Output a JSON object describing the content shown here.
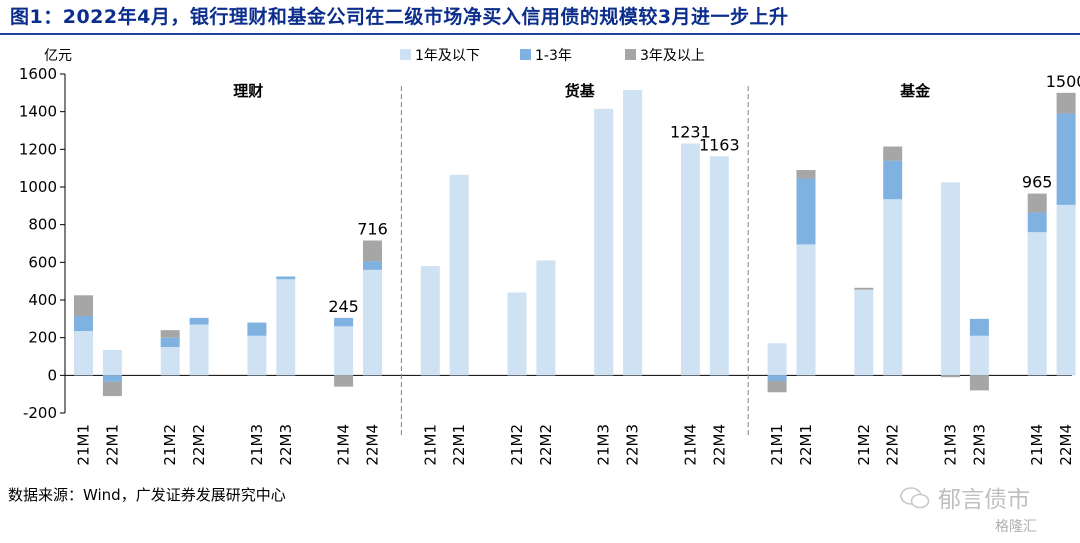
{
  "title": "图1：2022年4月，银行理财和基金公司在二级市场净买入信用债的规模较3月进一步上升",
  "source": "数据来源：Wind，广发证券发展研究中心",
  "watermark": "郁言债市",
  "watermark_sub": "格隆汇",
  "chart_data": {
    "type": "bar",
    "stacked": true,
    "ylabel": "亿元",
    "ylim": [
      -200,
      1600
    ],
    "yticks": [
      -200,
      0,
      200,
      400,
      600,
      800,
      1000,
      1200,
      1400,
      1600
    ],
    "legend_position": "top",
    "groups": [
      "理财",
      "货基",
      "基金"
    ],
    "categories": [
      "21M1",
      "22M1",
      "21M2",
      "22M2",
      "21M3",
      "22M3",
      "21M4",
      "22M4",
      "21M1",
      "22M1",
      "21M2",
      "22M2",
      "21M3",
      "22M3",
      "21M4",
      "22M4",
      "21M1",
      "22M1",
      "21M2",
      "22M2",
      "21M3",
      "22M3",
      "21M4",
      "22M4"
    ],
    "series": [
      {
        "name": "1年及以下",
        "color": "#cfe2f3",
        "values": [
          235,
          135,
          150,
          270,
          210,
          510,
          260,
          560,
          580,
          1065,
          440,
          610,
          1415,
          1515,
          1231,
          1163,
          170,
          695,
          455,
          935,
          1025,
          210,
          760,
          905
        ]
      },
      {
        "name": "1-3年",
        "color": "#7fb2e0",
        "values": [
          80,
          -35,
          50,
          35,
          70,
          15,
          45,
          45,
          0,
          0,
          0,
          0,
          0,
          0,
          0,
          0,
          -30,
          350,
          0,
          205,
          0,
          90,
          105,
          485
        ]
      },
      {
        "name": "3年及以上",
        "color": "#a6a6a6",
        "values": [
          110,
          -75,
          40,
          0,
          0,
          0,
          -60,
          111,
          0,
          0,
          0,
          0,
          0,
          0,
          0,
          0,
          -60,
          45,
          10,
          75,
          -10,
          -80,
          100,
          110
        ]
      }
    ],
    "data_labels": [
      {
        "category_index": 6,
        "text": "245"
      },
      {
        "category_index": 7,
        "text": "716"
      },
      {
        "category_index": 14,
        "text": "1231"
      },
      {
        "category_index": 15,
        "text": "1163"
      },
      {
        "category_index": 22,
        "text": "965"
      },
      {
        "category_index": 23,
        "text": "1500"
      }
    ]
  }
}
